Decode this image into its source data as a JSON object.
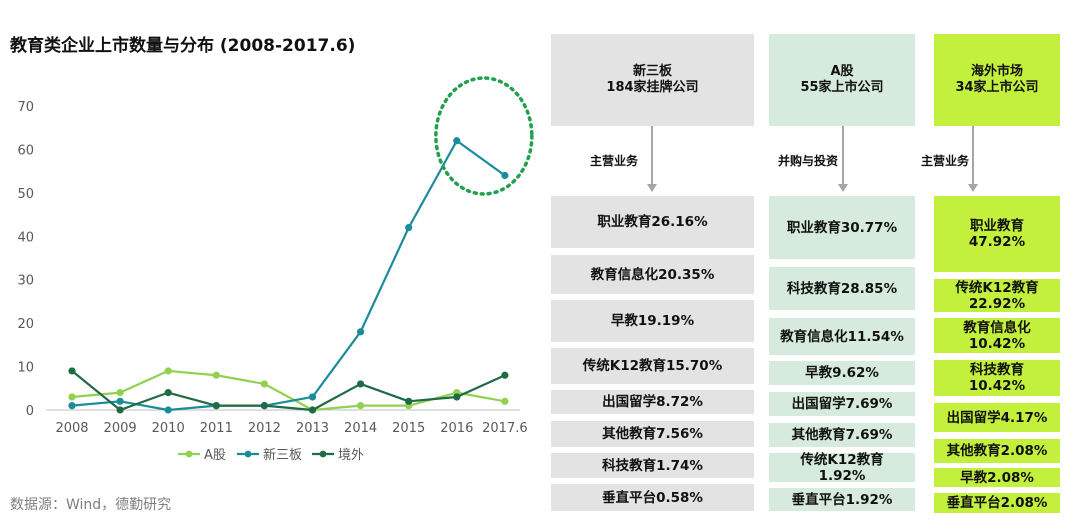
{
  "title": "教育类企业上市数量与分布 (2008-2017.6)",
  "source": "数据源：Wind，德勤研究",
  "chart_data": {
    "type": "line",
    "title": "教育类企业上市数量与分布 (2008-2017.6)",
    "categories": [
      "2008",
      "2009",
      "2010",
      "2011",
      "2012",
      "2013",
      "2014",
      "2015",
      "2016",
      "2017.6"
    ],
    "y_ticks": [
      0,
      10,
      20,
      30,
      40,
      50,
      60,
      70
    ],
    "ylim": [
      0,
      70
    ],
    "legend_position": "bottom",
    "series": [
      {
        "name": "A股",
        "color": "#92d050",
        "values": [
          3,
          4,
          9,
          8,
          6,
          0,
          1,
          1,
          4,
          2
        ]
      },
      {
        "name": "新三板",
        "color": "#1a8c9a",
        "values": [
          1,
          2,
          0,
          1,
          1,
          3,
          18,
          42,
          62,
          54
        ]
      },
      {
        "name": "境外",
        "color": "#1f6b45",
        "values": [
          9,
          0,
          4,
          1,
          1,
          0,
          6,
          2,
          3,
          8
        ]
      }
    ],
    "highlight": {
      "shape": "dotted-ellipse",
      "color": "#22a04b",
      "around": [
        "2016",
        "2017.6"
      ]
    }
  },
  "distribution": {
    "columns": [
      {
        "header_line1": "新三板",
        "header_line2": "184家挂牌公司",
        "category_label": "主营业务",
        "items": [
          "职业教育26.16%",
          "教育信息化20.35%",
          "早教19.19%",
          "传统K12教育15.70%",
          "出国留学8.72%",
          "其他教育7.56%",
          "科技教育1.74%",
          "垂直平台0.58%"
        ]
      },
      {
        "header_line1": "A股",
        "header_line2": "55家上市公司",
        "category_label": "并购与投资",
        "items": [
          "职业教育30.77%",
          "科技教育28.85%",
          "教育信息化11.54%",
          "早教9.62%",
          "出国留学7.69%",
          "其他教育7.69%",
          "传统K12教育\n1.92%",
          "垂直平台1.92%"
        ]
      },
      {
        "header_line1": "海外市场",
        "header_line2": "34家上市公司",
        "category_label": "主营业务",
        "items": [
          "职业教育\n47.92%",
          "传统K12教育\n22.92%",
          "教育信息化\n10.42%",
          "科技教育\n10.42%",
          "出国留学4.17%",
          "其他教育2.08%",
          "早教2.08%",
          "垂直平台2.08%"
        ]
      }
    ]
  }
}
